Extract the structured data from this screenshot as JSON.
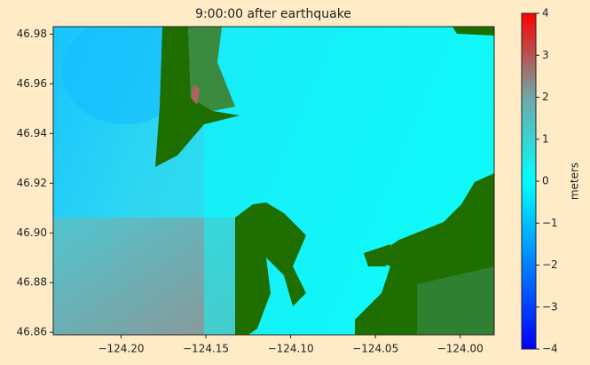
{
  "chart_data": {
    "type": "map",
    "title": "9:00:00 after earthquake",
    "xlim": [
      -124.24,
      -123.98
    ],
    "xticks": [
      {
        "value": -124.2,
        "label": "−124.20"
      },
      {
        "value": -124.15,
        "label": "−124.15"
      },
      {
        "value": -124.1,
        "label": "−124.10"
      },
      {
        "value": -124.05,
        "label": "−124.05"
      },
      {
        "value": -124.0,
        "label": "−124.00"
      }
    ],
    "ylim": [
      46.859,
      46.983
    ],
    "yticks": [
      {
        "value": 46.86,
        "label": "46.86"
      },
      {
        "value": 46.88,
        "label": "46.88"
      },
      {
        "value": 46.9,
        "label": "46.90"
      },
      {
        "value": 46.92,
        "label": "46.92"
      },
      {
        "value": 46.94,
        "label": "46.94"
      },
      {
        "value": 46.96,
        "label": "46.96"
      },
      {
        "value": 46.98,
        "label": "46.98"
      }
    ],
    "colorbar": {
      "label": "meters",
      "lim": [
        -4,
        4
      ],
      "ticks": [
        {
          "value": -4,
          "label": "−4"
        },
        {
          "value": -3,
          "label": "−3"
        },
        {
          "value": -2,
          "label": "−2"
        },
        {
          "value": -1,
          "label": "−1"
        },
        0,
        1,
        2,
        3,
        4
      ],
      "colors": [
        "#0000ff",
        "#0080ff",
        "#00ffff",
        "#70a8a8",
        "#ff0000"
      ]
    }
  }
}
